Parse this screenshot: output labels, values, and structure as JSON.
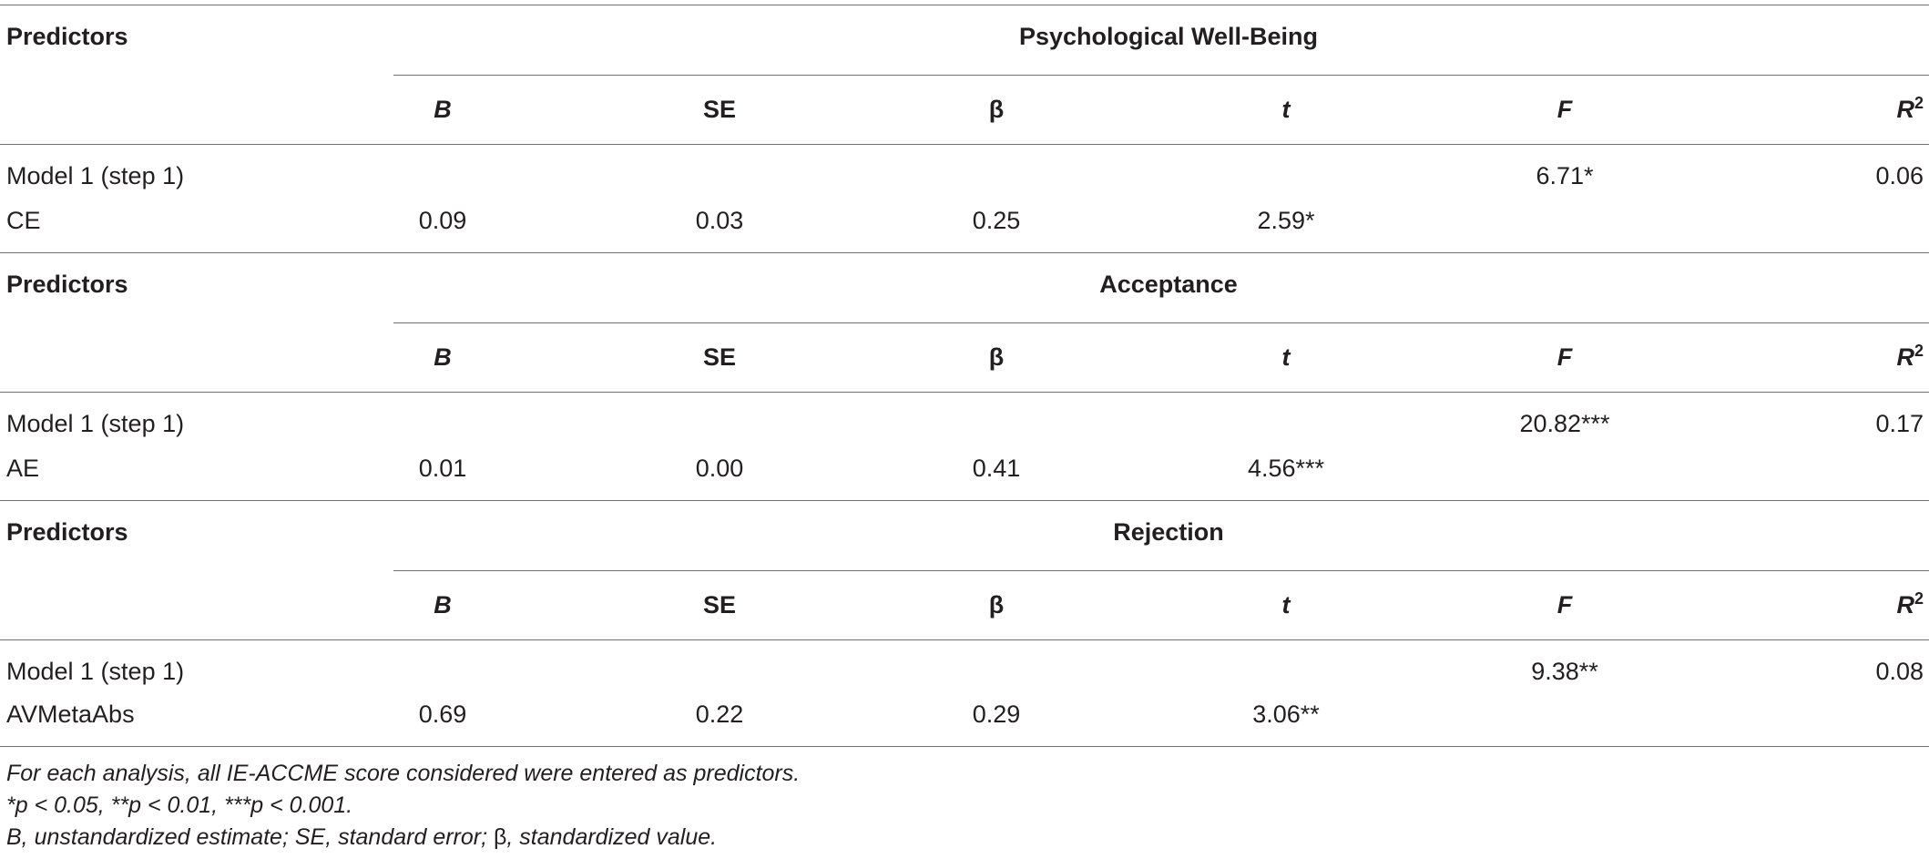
{
  "sections": [
    {
      "predictors_label": "Predictors",
      "title": "Psychological Well-Being",
      "columns": {
        "B": "B",
        "SE": "SE",
        "beta": "β",
        "t": "t",
        "F": "F",
        "R": "R",
        "R_sup": "2"
      },
      "model_row": {
        "label": "Model 1 (step 1)",
        "F": "6.71*",
        "R2": "0.06"
      },
      "predictor_row": {
        "label": "CE",
        "B": "0.09",
        "SE": "0.03",
        "beta": "0.25",
        "t": "2.59*"
      }
    },
    {
      "predictors_label": "Predictors",
      "title": "Acceptance",
      "columns": {
        "B": "B",
        "SE": "SE",
        "beta": "β",
        "t": "t",
        "F": "F",
        "R": "R",
        "R_sup": "2"
      },
      "model_row": {
        "label": "Model 1 (step 1)",
        "F": "20.82***",
        "R2": "0.17"
      },
      "predictor_row": {
        "label": "AE",
        "B": "0.01",
        "SE": "0.00",
        "beta": "0.41",
        "t": "4.56***"
      }
    },
    {
      "predictors_label": "Predictors",
      "title": "Rejection",
      "columns": {
        "B": "B",
        "SE": "SE",
        "beta": "β",
        "t": "t",
        "F": "F",
        "R": "R",
        "R_sup": "2"
      },
      "model_row": {
        "label": "Model 1 (step 1)",
        "F": "9.38**",
        "R2": "0.08"
      },
      "predictor_row": {
        "label": "AVMetaAbs",
        "B": "0.69",
        "SE": "0.22",
        "beta": "0.29",
        "t": "3.06**"
      }
    }
  ],
  "notes": {
    "line1": "For each analysis, all IE-ACCME score considered were entered as predictors.",
    "line2": "*p < 0.05, **p < 0.01, ***p < 0.001.",
    "line3_pre": "B, unstandardized estimate; SE, standard error; ",
    "line3_beta": "β",
    "line3_post": ", standardized value."
  }
}
